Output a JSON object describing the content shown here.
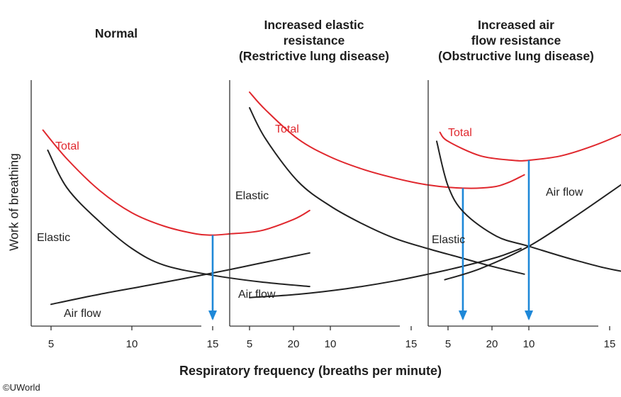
{
  "chart_data": [
    {
      "type": "line",
      "title": "Normal",
      "xlabel": "Respiratory frequency (breaths per minute)",
      "ylabel": "Work of breathing",
      "xlim": [
        2,
        23
      ],
      "ylim": [
        0,
        10
      ],
      "xticks": [
        5,
        10,
        15,
        20
      ],
      "optimum_x": 15,
      "series": [
        {
          "name": "Total",
          "color": "#e0282e",
          "x": [
            4.5,
            6,
            8,
            10,
            12,
            14,
            15,
            16,
            18,
            20,
            21
          ],
          "y": [
            8.3,
            7.0,
            5.6,
            4.6,
            4.0,
            3.65,
            3.6,
            3.65,
            3.8,
            4.3,
            4.7
          ]
        },
        {
          "name": "Elastic",
          "color": "#222222",
          "x": [
            4.8,
            6,
            8,
            10,
            12,
            15,
            18,
            21
          ],
          "y": [
            7.4,
            5.7,
            4.2,
            3.0,
            2.25,
            1.8,
            1.5,
            1.3
          ]
        },
        {
          "name": "Air flow",
          "color": "#222222",
          "x": [
            5,
            8,
            11,
            15,
            18,
            21
          ],
          "y": [
            0.5,
            0.95,
            1.35,
            1.9,
            2.35,
            2.8
          ]
        }
      ],
      "labels": [
        "Total",
        "Elastic",
        "Air flow"
      ]
    },
    {
      "type": "line",
      "title": "Increased elastic resistance (Restrictive lung disease)",
      "xlabel": "Respiratory frequency (breaths per minute)",
      "ylabel": "Work of breathing",
      "xlim": [
        2,
        23
      ],
      "ylim": [
        0,
        10
      ],
      "xticks": [
        5,
        10,
        15,
        20
      ],
      "optimum_x": 18.2,
      "series": [
        {
          "name": "Total",
          "color": "#e0282e",
          "x": [
            5,
            6,
            8,
            10,
            12,
            14,
            16,
            18.2,
            20,
            21,
            22
          ],
          "y": [
            10.0,
            9.2,
            7.9,
            7.1,
            6.55,
            6.15,
            5.85,
            5.7,
            5.75,
            5.95,
            6.3
          ]
        },
        {
          "name": "Elastic",
          "color": "#222222",
          "x": [
            5,
            6,
            8,
            10,
            12,
            14,
            16,
            18,
            20,
            22
          ],
          "y": [
            9.3,
            7.9,
            6.0,
            4.9,
            4.1,
            3.45,
            3.0,
            2.6,
            2.2,
            1.85
          ]
        },
        {
          "name": "Air flow",
          "color": "#222222",
          "x": [
            5,
            8,
            11,
            14,
            17,
            19,
            20.5,
            21.8
          ],
          "y": [
            0.8,
            0.95,
            1.2,
            1.55,
            2.0,
            2.35,
            2.65,
            3.0
          ]
        }
      ],
      "labels": [
        "Total",
        "Elastic",
        "Air flow"
      ]
    },
    {
      "type": "line",
      "title": "Increased air flow resistance (Obstructive lung disease)",
      "xlabel": "Respiratory frequency (breaths per minute)",
      "ylabel": "Work of breathing",
      "xlim": [
        2,
        23
      ],
      "ylim": [
        0,
        10
      ],
      "xticks": [
        5,
        10,
        15,
        20
      ],
      "optimum_x": 10,
      "series": [
        {
          "name": "Total",
          "color": "#e0282e",
          "x": [
            4.5,
            5,
            7,
            9,
            10,
            12,
            14,
            16,
            18,
            20
          ],
          "y": [
            8.2,
            7.8,
            7.15,
            6.95,
            6.95,
            7.15,
            7.6,
            8.2,
            8.9,
            9.6
          ]
        },
        {
          "name": "Elastic",
          "color": "#222222",
          "x": [
            4.3,
            5,
            6,
            8,
            10,
            13,
            16,
            20.5
          ],
          "y": [
            7.8,
            5.8,
            4.6,
            3.55,
            3.1,
            2.45,
            1.95,
            1.6
          ]
        },
        {
          "name": "Air flow",
          "color": "#222222",
          "x": [
            4.8,
            7,
            10,
            13,
            16,
            18,
            20.5
          ],
          "y": [
            1.6,
            2.1,
            3.1,
            4.5,
            6.0,
            7.0,
            8.0
          ]
        }
      ],
      "labels": [
        "Total",
        "Elastic",
        "Air flow"
      ]
    }
  ],
  "panels": [
    {
      "title_lines": [
        "Normal"
      ]
    },
    {
      "title_lines": [
        "Increased elastic",
        "resistance",
        "(Restrictive lung disease)"
      ]
    },
    {
      "title_lines": [
        "Increased air",
        "flow resistance",
        "(Obstructive lung disease)"
      ]
    }
  ],
  "xlabel": "Respiratory frequency (breaths per minute)",
  "ylabel": "Work of breathing",
  "copyright": "©UWorld",
  "colors": {
    "total": "#e0282e",
    "curve": "#222222",
    "axis": "#333333",
    "arrow": "#1e88d8"
  }
}
